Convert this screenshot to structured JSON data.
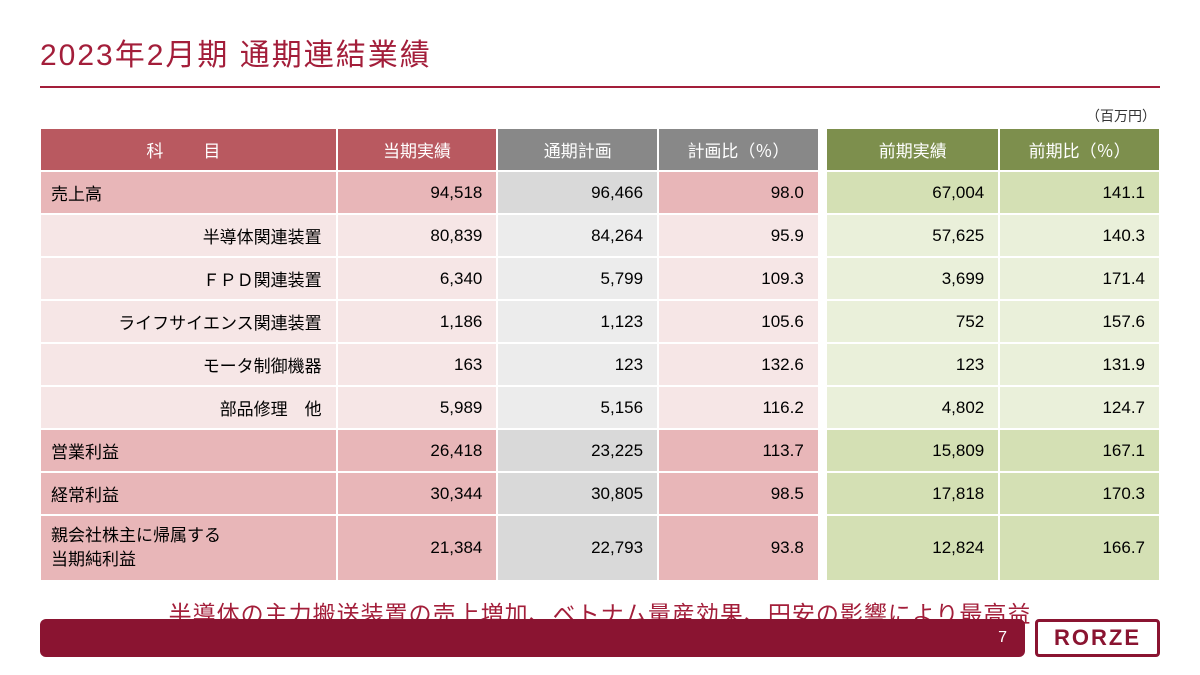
{
  "title": "2023年2月期 通期連結業績",
  "unit_label": "（百万円）",
  "headers": {
    "item": "科目",
    "actual": "当期実績",
    "plan": "通期計画",
    "plan_pct": "計画比（％）",
    "prev": "前期実績",
    "prev_pct": "前期比（％）"
  },
  "rows": [
    {
      "type": "main",
      "label": "売上高",
      "actual": "94,518",
      "plan": "96,466",
      "plan_pct": "98.0",
      "prev": "67,004",
      "prev_pct": "141.1"
    },
    {
      "type": "sub",
      "label": "半導体関連装置",
      "actual": "80,839",
      "plan": "84,264",
      "plan_pct": "95.9",
      "prev": "57,625",
      "prev_pct": "140.3"
    },
    {
      "type": "sub",
      "label": "ＦＰＤ関連装置",
      "actual": "6,340",
      "plan": "5,799",
      "plan_pct": "109.3",
      "prev": "3,699",
      "prev_pct": "171.4"
    },
    {
      "type": "sub",
      "label": "ライフサイエンス関連装置",
      "actual": "1,186",
      "plan": "1,123",
      "plan_pct": "105.6",
      "prev": "752",
      "prev_pct": "157.6"
    },
    {
      "type": "sub",
      "label": "モータ制御機器",
      "actual": "163",
      "plan": "123",
      "plan_pct": "132.6",
      "prev": "123",
      "prev_pct": "131.9"
    },
    {
      "type": "sub",
      "label": "部品修理　他",
      "actual": "5,989",
      "plan": "5,156",
      "plan_pct": "116.2",
      "prev": "4,802",
      "prev_pct": "124.7"
    },
    {
      "type": "main",
      "label": "営業利益",
      "actual": "26,418",
      "plan": "23,225",
      "plan_pct": "113.7",
      "prev": "15,809",
      "prev_pct": "167.1"
    },
    {
      "type": "main",
      "label": "経常利益",
      "actual": "30,344",
      "plan": "30,805",
      "plan_pct": "98.5",
      "prev": "17,818",
      "prev_pct": "170.3"
    },
    {
      "type": "main",
      "tall": true,
      "label": "親会社株主に帰属する\n当期純利益",
      "actual": "21,384",
      "plan": "22,793",
      "plan_pct": "93.8",
      "prev": "12,824",
      "prev_pct": "166.7"
    }
  ],
  "note": "半導体の主力搬送装置の売上増加、ベトナム量産効果、円安の影響により最高益",
  "page_number": "7",
  "logo_text": "RORZE",
  "colors": {
    "brand": "#a31e3a",
    "footer_bar": "#8a1431",
    "hdr_red": "#b95960",
    "hdr_gray": "#888888",
    "hdr_green": "#7d8f4d",
    "main_red_bg": "#e8b6b8",
    "main_gray_bg": "#d9d9d9",
    "main_green_bg": "#d4e0b4",
    "sub_red_bg": "#f6e6e6",
    "sub_gray_bg": "#ececec",
    "sub_green_bg": "#eaf0da"
  }
}
